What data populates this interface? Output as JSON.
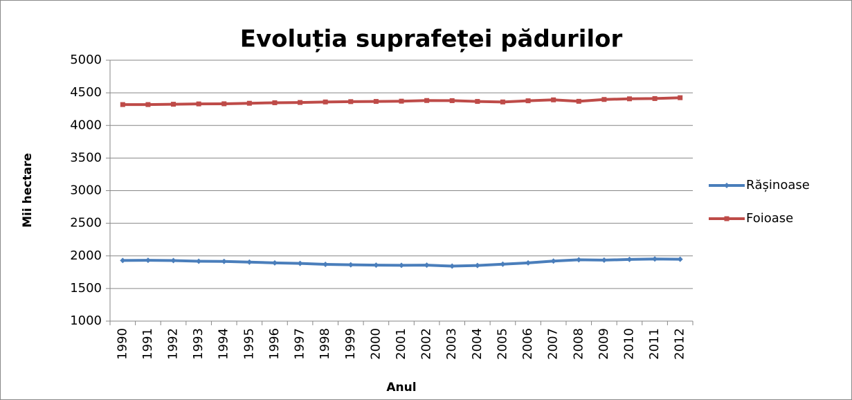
{
  "chart_data": {
    "type": "line",
    "title": "Evoluția suprafeței pădurilor",
    "x_label": "Anul",
    "y_label": "Mii hectare",
    "categories": [
      "1990",
      "1991",
      "1992",
      "1993",
      "1994",
      "1995",
      "1996",
      "1997",
      "1998",
      "1999",
      "2000",
      "2001",
      "2002",
      "2003",
      "2004",
      "2005",
      "2006",
      "2007",
      "2008",
      "2009",
      "2010",
      "2011",
      "2012"
    ],
    "series": [
      {
        "name": "Rășinoase",
        "color": "#4a7ebb",
        "marker": "diamond",
        "values": [
          1930,
          1932,
          1928,
          1918,
          1915,
          1905,
          1893,
          1885,
          1870,
          1863,
          1858,
          1855,
          1858,
          1843,
          1853,
          1873,
          1893,
          1920,
          1940,
          1935,
          1945,
          1952,
          1948
        ]
      },
      {
        "name": "Foioase",
        "color": "#be4b48",
        "marker": "square",
        "values": [
          4320,
          4320,
          4325,
          4330,
          4332,
          4340,
          4348,
          4352,
          4360,
          4365,
          4368,
          4372,
          4382,
          4380,
          4368,
          4360,
          4378,
          4392,
          4370,
          4398,
          4408,
          4412,
          4425
        ]
      }
    ],
    "ylim": [
      1000,
      5000
    ],
    "yticks": [
      1000,
      1500,
      2000,
      2500,
      3000,
      3500,
      4000,
      4500,
      5000
    ],
    "grid": true,
    "legend": "right"
  }
}
